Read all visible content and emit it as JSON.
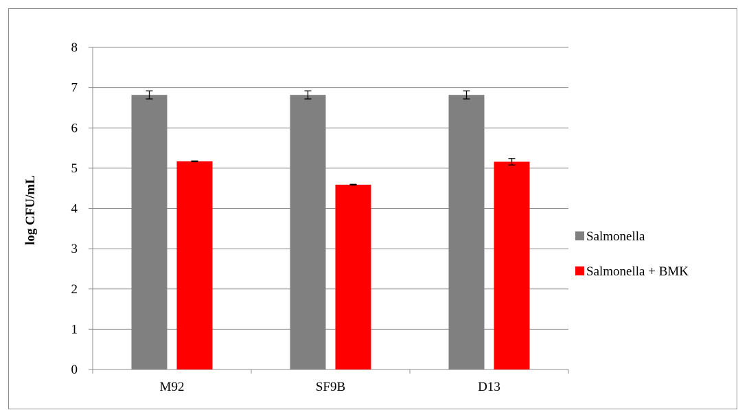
{
  "chart_data": {
    "type": "bar",
    "title": "",
    "xlabel": "",
    "ylabel": "log CFU/mL",
    "ylim": [
      0,
      8
    ],
    "yticks": [
      0,
      1,
      2,
      3,
      4,
      5,
      6,
      7,
      8
    ],
    "grid": true,
    "legend_position": "right",
    "categories": [
      "M92",
      "SF9B",
      "D13"
    ],
    "series": [
      {
        "name": "Salmonella",
        "color": "#808080",
        "values": [
          6.82,
          6.82,
          6.82
        ],
        "errors": [
          0.1,
          0.1,
          0.1
        ]
      },
      {
        "name": "Salmonella + BMK",
        "color": "#ff0000",
        "values": [
          5.17,
          4.59,
          5.16
        ],
        "errors": [
          0.01,
          0.01,
          0.08
        ]
      }
    ]
  }
}
